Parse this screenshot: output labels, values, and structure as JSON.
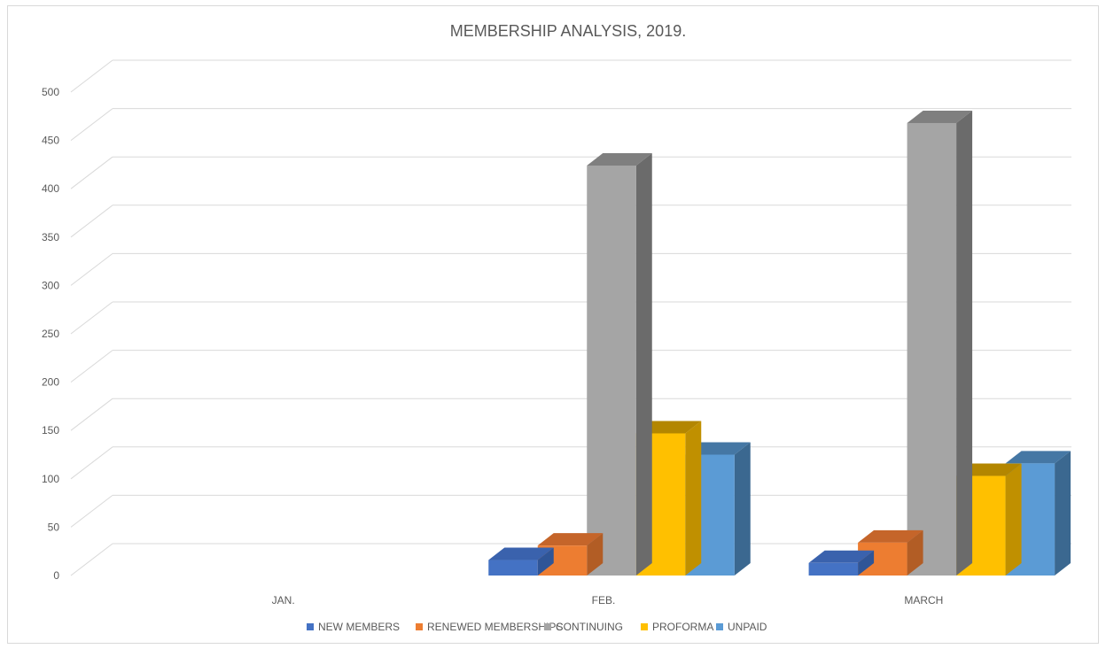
{
  "chart_data": {
    "type": "bar",
    "title": "MEMBERSHIP ANALYSIS, 2019.",
    "categories": [
      "JAN.",
      "FEB.",
      "MARCH"
    ],
    "series": [
      {
        "name": "NEW MEMBERS",
        "values": [
          0,
          16,
          13
        ],
        "color": "#4472c4",
        "side": "#2f5597",
        "top": "#3a62ad"
      },
      {
        "name": "RENEWED MEMBERSHIPS",
        "values": [
          0,
          31,
          34
        ],
        "color": "#ed7d31",
        "side": "#b25d25",
        "top": "#c5652a"
      },
      {
        "name": "CONTINUING",
        "values": [
          0,
          424,
          468
        ],
        "color": "#a5a5a5",
        "side": "#6b6b6b",
        "top": "#7f7f7f"
      },
      {
        "name": "PROFORMA",
        "values": [
          0,
          147,
          103
        ],
        "color": "#ffc000",
        "side": "#c09000",
        "top": "#b38600"
      },
      {
        "name": "UNPAID",
        "values": [
          0,
          125,
          116
        ],
        "color": "#5b9bd5",
        "side": "#3b6890",
        "top": "#4577a4"
      }
    ],
    "yticks": [
      0,
      50,
      100,
      150,
      200,
      250,
      300,
      350,
      400,
      450,
      500
    ],
    "ylim": [
      0,
      500
    ],
    "grid": true,
    "legend": "bottom"
  }
}
